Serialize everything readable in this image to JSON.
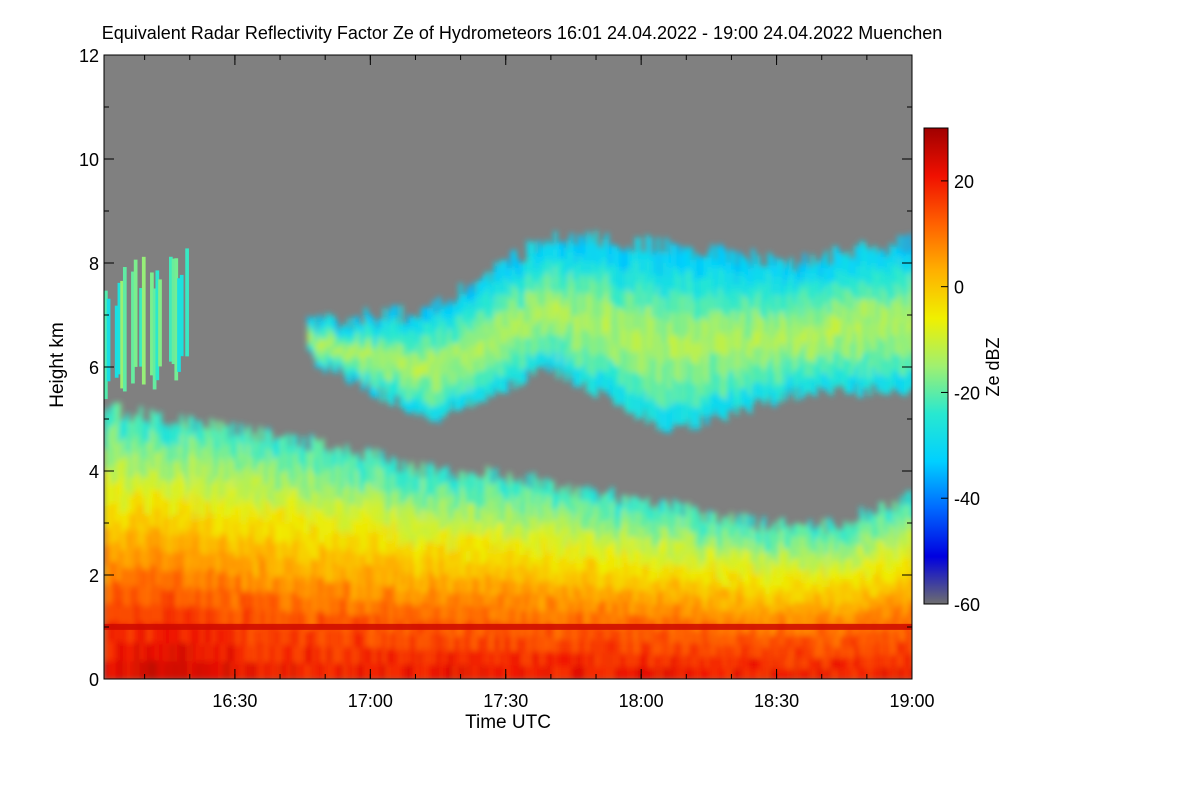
{
  "chart_data": {
    "type": "heatmap",
    "title": "Equivalent Radar Reflectivity Factor Ze of Hydrometeors   16:01 24.04.2022 - 19:00 24.04.2022 Muenchen",
    "xlabel": "Time UTC",
    "ylabel": "Height km",
    "colorbar_label": "Ze dBZ",
    "x_range_minutes_utc": [
      961,
      1140
    ],
    "x_ticks": [
      {
        "label": "16:30",
        "minutes": 990
      },
      {
        "label": "17:00",
        "minutes": 1020
      },
      {
        "label": "17:30",
        "minutes": 1050
      },
      {
        "label": "18:00",
        "minutes": 1080
      },
      {
        "label": "18:30",
        "minutes": 1110
      },
      {
        "label": "19:00",
        "minutes": 1140
      }
    ],
    "ylim": [
      0,
      12
    ],
    "y_ticks": [
      0,
      2,
      4,
      6,
      8,
      10,
      12
    ],
    "colorbar_range": [
      -60,
      30
    ],
    "colorbar_ticks": [
      20,
      0,
      -20,
      -40,
      -60
    ],
    "no_data_color": "#808080",
    "colormap": [
      "#6e6e6e",
      "#0000e0",
      "#0068ff",
      "#00d0ff",
      "#28e8d0",
      "#a0f070",
      "#f0f000",
      "#ffb000",
      "#ff6000",
      "#f01000",
      "#a00000"
    ],
    "layers": [
      {
        "name": "lower",
        "base_km": 0,
        "top_km": [
          5.2,
          4.9,
          4.7,
          4.4,
          4.0,
          3.9,
          3.6,
          3.3,
          3.0,
          2.95,
          3.5
        ],
        "ze_dbz_at_surface": 20,
        "ze_dbz_at_top": -25
      },
      {
        "name": "melting-layer",
        "height_km": 1.0,
        "ze_dbz": 25
      },
      {
        "name": "upper",
        "range_minutes": [
          1006,
          1140
        ],
        "base_km": [
          6.2,
          5.0,
          6.0,
          4.8,
          5.5,
          5.6
        ],
        "top_km": [
          6.8,
          7.1,
          8.5,
          8.3,
          8.0,
          8.4
        ],
        "ze_dbz_core": -5,
        "ze_dbz_edge": -35
      },
      {
        "name": "early",
        "range_minutes": [
          961,
          980
        ],
        "base_km": [
          5.6,
          6.0
        ],
        "top_km": [
          7.9,
          8.5
        ],
        "ze_dbz_core": -22
      }
    ]
  }
}
